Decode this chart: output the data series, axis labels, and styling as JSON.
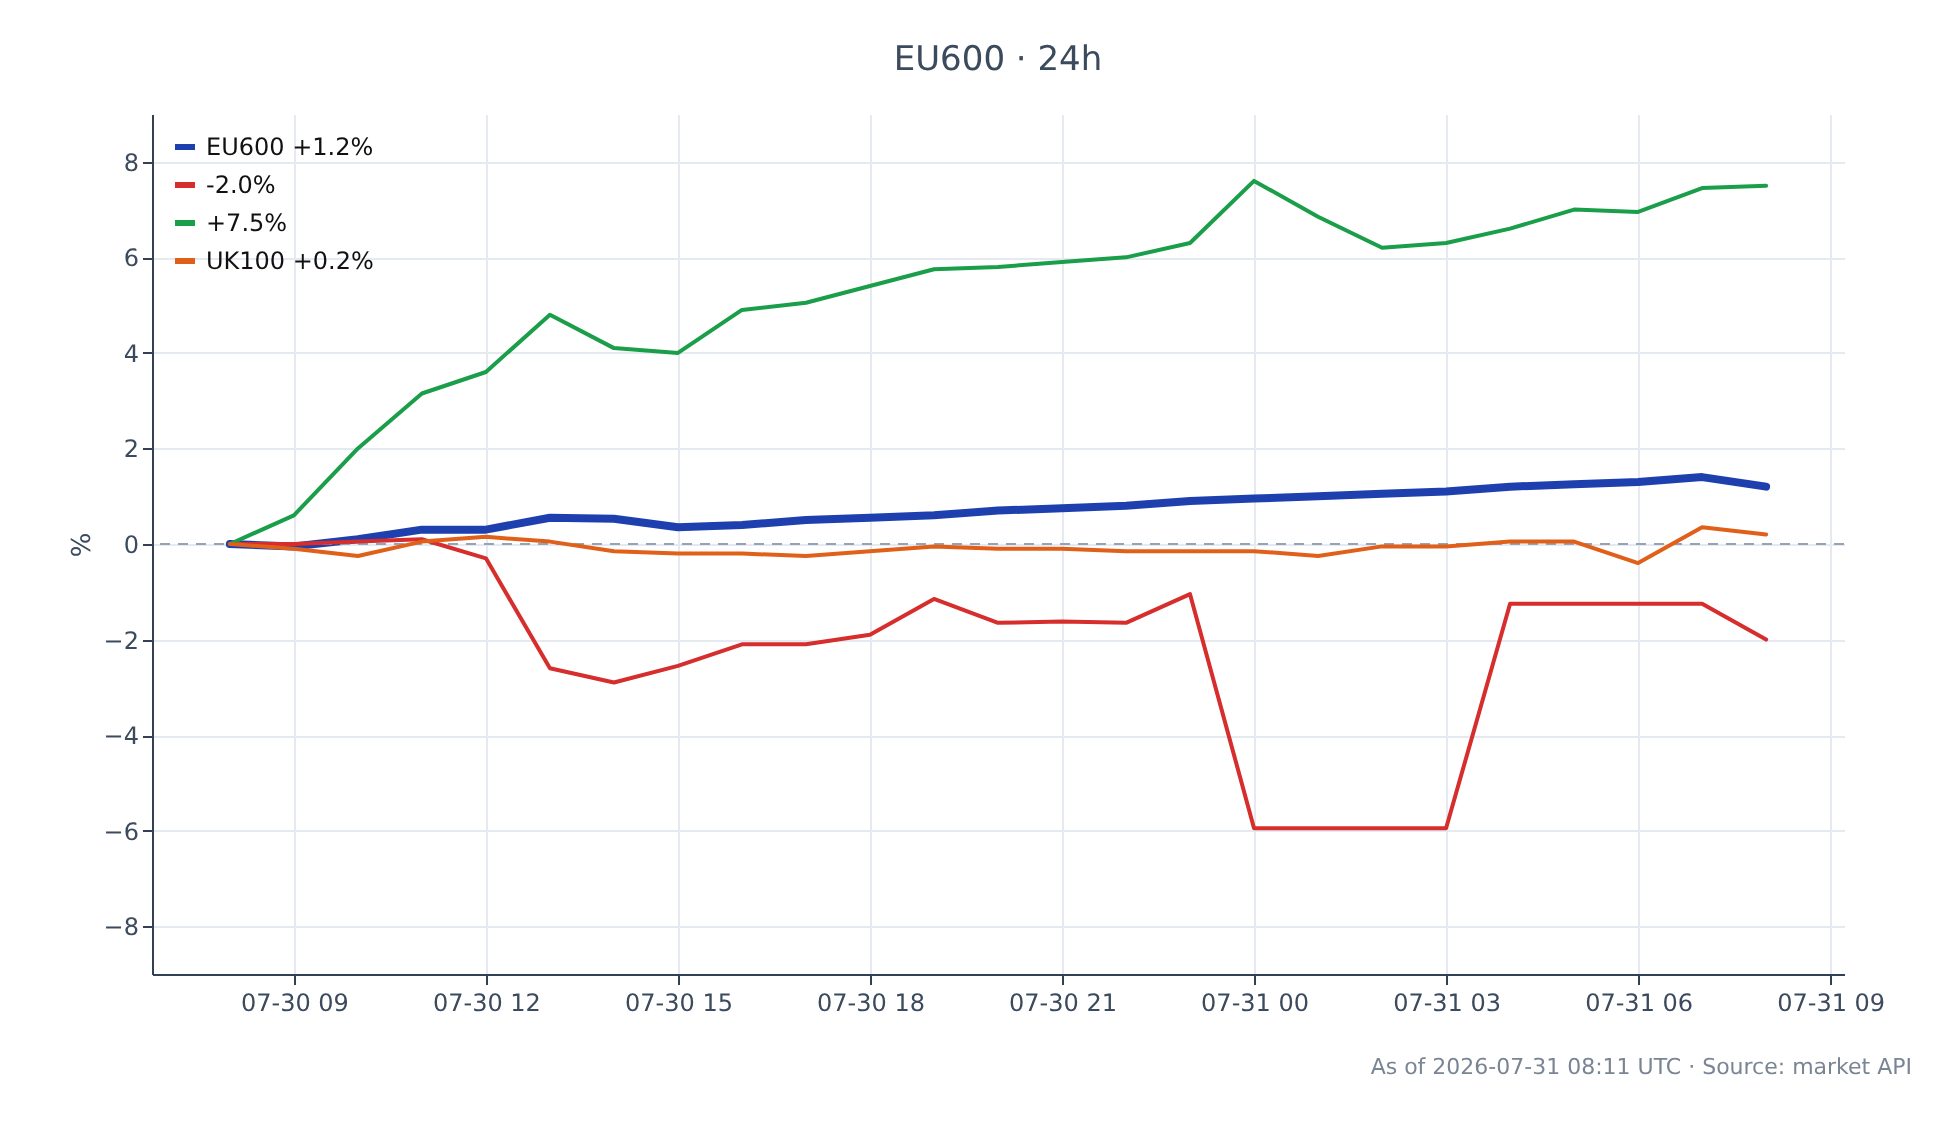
{
  "chart_data": {
    "type": "line",
    "title": "EU600 · 24h",
    "ylabel": "%",
    "x": [
      "2026-07-30T08:00",
      "2026-07-30T09:00",
      "2026-07-30T10:00",
      "2026-07-30T11:00",
      "2026-07-30T12:00",
      "2026-07-30T13:00",
      "2026-07-30T14:00",
      "2026-07-30T15:00",
      "2026-07-30T16:00",
      "2026-07-30T17:00",
      "2026-07-30T18:00",
      "2026-07-30T19:00",
      "2026-07-30T20:00",
      "2026-07-30T21:00",
      "2026-07-30T22:00",
      "2026-07-30T23:00",
      "2026-07-31T00:00",
      "2026-07-31T01:00",
      "2026-07-31T02:00",
      "2026-07-31T03:00",
      "2026-07-31T04:00",
      "2026-07-31T05:00",
      "2026-07-31T06:00",
      "2026-07-31T07:00",
      "2026-07-31T08:00"
    ],
    "series": [
      {
        "name": "EU600 +1.2%",
        "color": "#1e40af",
        "values": [
          0,
          -0.05,
          0.1,
          0.3,
          0.3,
          0.55,
          0.53,
          0.35,
          0.4,
          0.5,
          0.55,
          0.6,
          0.7,
          0.75,
          0.8,
          0.9,
          0.95,
          1.0,
          1.05,
          1.1,
          1.2,
          1.25,
          1.3,
          1.4,
          1.2
        ]
      },
      {
        "name": "-2.0%",
        "color": "#d62d2d",
        "values": [
          0,
          0,
          0.05,
          0.1,
          -0.3,
          -2.6,
          -2.9,
          -2.55,
          -2.1,
          -2.1,
          -1.9,
          -1.15,
          -1.65,
          -1.62,
          -1.65,
          -1.05,
          -5.95,
          -5.95,
          -5.95,
          -5.95,
          -1.25,
          -1.25,
          -1.25,
          -1.25,
          -2.0
        ]
      },
      {
        "name": "+7.5%",
        "color": "#1a9e4a",
        "values": [
          0,
          0.6,
          2.0,
          3.15,
          3.6,
          4.8,
          4.1,
          4.0,
          4.9,
          5.05,
          5.4,
          5.75,
          5.8,
          5.9,
          6.0,
          6.3,
          7.6,
          6.85,
          6.2,
          6.3,
          6.6,
          7.0,
          6.95,
          7.45,
          7.5
        ]
      },
      {
        "name": "UK100 +0.2%",
        "color": "#e0601a",
        "values": [
          0,
          -0.1,
          -0.25,
          0.05,
          0.15,
          0.05,
          -0.15,
          -0.2,
          -0.2,
          -0.25,
          -0.15,
          -0.05,
          -0.1,
          -0.1,
          -0.15,
          -0.15,
          -0.15,
          -0.25,
          -0.05,
          -0.05,
          0.05,
          0.05,
          -0.4,
          0.35,
          0.2
        ]
      }
    ],
    "xlim": [
      "2026-07-30T06:47",
      "2026-07-31T09:13"
    ],
    "xticks": [
      {
        "value": "2026-07-30T09:00",
        "label": "07-30 09"
      },
      {
        "value": "2026-07-30T12:00",
        "label": "07-30 12"
      },
      {
        "value": "2026-07-30T15:00",
        "label": "07-30 15"
      },
      {
        "value": "2026-07-30T18:00",
        "label": "07-30 18"
      },
      {
        "value": "2026-07-30T21:00",
        "label": "07-30 21"
      },
      {
        "value": "2026-07-31T00:00",
        "label": "07-31 00"
      },
      {
        "value": "2026-07-31T03:00",
        "label": "07-31 03"
      },
      {
        "value": "2026-07-31T06:00",
        "label": "07-31 06"
      },
      {
        "value": "2026-07-31T09:00",
        "label": "07-31 09"
      }
    ],
    "ylim": [
      -9,
      9
    ],
    "yticks": [
      {
        "value": -8,
        "label": "−8"
      },
      {
        "value": -6,
        "label": "−6"
      },
      {
        "value": -4,
        "label": "−4"
      },
      {
        "value": -2,
        "label": "−2"
      },
      0,
      2,
      4,
      6,
      8
    ],
    "ref_lines": [
      {
        "axis": "y",
        "value": 0,
        "color": "#94a3b8",
        "line_style": "dashed"
      }
    ],
    "grid": true,
    "legend": "top left",
    "annotations": [
      "As of 2026-07-31 08:11 UTC · Source: market API"
    ]
  }
}
